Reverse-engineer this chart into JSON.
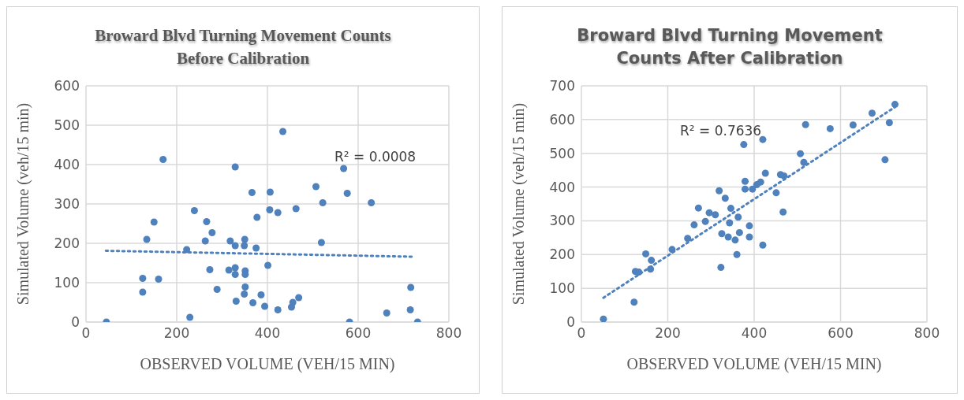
{
  "chart_data": [
    {
      "type": "scatter",
      "title": "Broward Blvd Turning Movement Counts Before Calibration",
      "xlabel": "OBSERVED VOLUME (VEH/15 MIN)",
      "ylabel": "Simulated Volume (veh/15 min)",
      "xlim": [
        0,
        800
      ],
      "xticks": [
        0,
        200,
        400,
        600,
        800
      ],
      "ylim": [
        0,
        600
      ],
      "yticks": [
        0,
        100,
        200,
        300,
        400,
        500,
        600
      ],
      "grid": true,
      "annotations": [
        "R² = 0.0008"
      ],
      "series": [
        {
          "type": "scatter",
          "color": "#4f81bd",
          "marker": "circle",
          "x": [
            45,
            125,
            125,
            134,
            150,
            170,
            160,
            222,
            229,
            239,
            266,
            278,
            263,
            273,
            289,
            318,
            329,
            329,
            350,
            349,
            375,
            315,
            329,
            329,
            351,
            351,
            351,
            349,
            331,
            366,
            377,
            368,
            386,
            394,
            401,
            406,
            405,
            423,
            423,
            434,
            453,
            456,
            469,
            463,
            507,
            522,
            519,
            568,
            576,
            581,
            629,
            663,
            716,
            715,
            731
          ],
          "values": [
            0,
            111,
            76,
            210,
            254,
            413,
            109,
            184,
            12,
            283,
            255,
            227,
            206,
            133,
            83,
            206,
            394,
            194,
            210,
            194,
            188,
            132,
            138,
            121,
            130,
            121,
            89,
            71,
            53,
            329,
            266,
            49,
            69,
            40,
            144,
            330,
            285,
            278,
            31,
            484,
            38,
            50,
            62,
            288,
            344,
            303,
            202,
            390,
            327,
            0,
            303,
            23,
            88,
            31,
            0
          ]
        },
        {
          "type": "line",
          "color": "#4f81bd",
          "marker": "none",
          "line_style": "dotted",
          "x": [
            44,
            719
          ],
          "values": [
            181,
            166
          ]
        }
      ]
    },
    {
      "type": "scatter",
      "title": "Broward Blvd Turning Movement Counts After Calibration",
      "xlabel": "OBSERVED VOLUME (VEH/15 MIN)",
      "ylabel": "Simulated Volume (veh/15 min)",
      "xlim": [
        0,
        800
      ],
      "xticks": [
        0,
        200,
        400,
        600,
        800
      ],
      "ylim": [
        0,
        700
      ],
      "yticks": [
        0,
        100,
        200,
        300,
        400,
        500,
        600,
        700
      ],
      "grid": true,
      "annotations": [
        "R² = 0.7636"
      ],
      "series": [
        {
          "type": "scatter",
          "color": "#4f81bd",
          "marker": "circle",
          "x": [
            51,
            122,
            125,
            133,
            149,
            162,
            160,
            210,
            246,
            261,
            271,
            287,
            296,
            310,
            319,
            333,
            323,
            325,
            340,
            343,
            346,
            356,
            360,
            363,
            366,
            376,
            379,
            379,
            389,
            389,
            396,
            406,
            415,
            420,
            420,
            426,
            451,
            461,
            469,
            467,
            507,
            515,
            519,
            576,
            629,
            673,
            703,
            713,
            726
          ],
          "values": [
            9,
            59,
            150,
            148,
            202,
            183,
            157,
            215,
            248,
            288,
            338,
            298,
            324,
            318,
            389,
            367,
            162,
            262,
            252,
            294,
            337,
            243,
            200,
            311,
            265,
            526,
            417,
            394,
            285,
            252,
            394,
            407,
            415,
            541,
            228,
            441,
            383,
            437,
            433,
            326,
            499,
            473,
            585,
            573,
            584,
            619,
            481,
            591,
            645
          ]
        },
        {
          "type": "line",
          "color": "#4f81bd",
          "marker": "none",
          "line_style": "dotted",
          "x": [
            51,
            726
          ],
          "values": [
            72,
            637
          ]
        }
      ]
    }
  ]
}
